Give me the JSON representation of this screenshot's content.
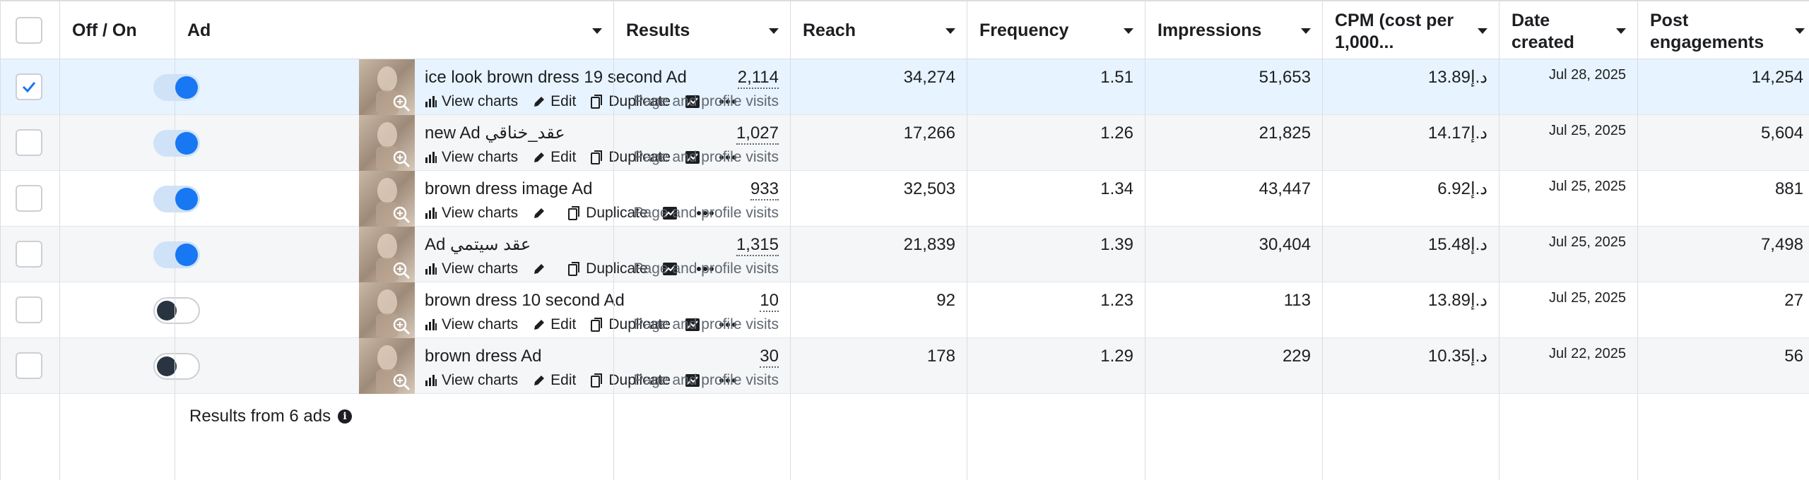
{
  "header": {
    "offon": "Off / On",
    "ad": "Ad",
    "results": "Results",
    "reach": "Reach",
    "frequency": "Frequency",
    "impressions": "Impressions",
    "cpm": "CPM (cost per 1,000...",
    "date_created": "Date created",
    "post_engagements": "Post engagements"
  },
  "actions": {
    "view_charts": "View charts",
    "edit": "Edit",
    "duplicate": "Duplicate"
  },
  "rows": [
    {
      "name": "ice look brown dress 19 second Ad",
      "results": "2,114",
      "results_type": "Page and profile visits",
      "reach": "34,274",
      "frequency": "1.51",
      "impressions": "51,653",
      "cpm": "13.89د.إ",
      "date": "Jul 28, 2025",
      "engagements": "14,254",
      "status": "on",
      "selected": true
    },
    {
      "name": "new Ad عقد_خناقي",
      "results": "1,027",
      "results_type": "Page and profile visits",
      "reach": "17,266",
      "frequency": "1.26",
      "impressions": "21,825",
      "cpm": "14.17د.إ",
      "date": "Jul 25, 2025",
      "engagements": "5,604",
      "status": "on",
      "selected": false
    },
    {
      "name": "brown dress image Ad",
      "results": "933",
      "results_type": "Page and profile visits",
      "reach": "32,503",
      "frequency": "1.34",
      "impressions": "43,447",
      "cpm": "6.92د.إ",
      "date": "Jul 25, 2025",
      "engagements": "881",
      "status": "on",
      "selected": false
    },
    {
      "name": "Ad عقد سيتمي",
      "results": "1,315",
      "results_type": "Page and profile visits",
      "reach": "21,839",
      "frequency": "1.39",
      "impressions": "30,404",
      "cpm": "15.48د.إ",
      "date": "Jul 25, 2025",
      "engagements": "7,498",
      "status": "on",
      "selected": false
    },
    {
      "name": "brown dress 10 second Ad",
      "results": "10",
      "results_type": "Page and profile visits",
      "reach": "92",
      "frequency": "1.23",
      "impressions": "113",
      "cpm": "13.89د.إ",
      "date": "Jul 25, 2025",
      "engagements": "27",
      "status": "off",
      "selected": false
    },
    {
      "name": "brown dress Ad",
      "results": "30",
      "results_type": "Page and profile visits",
      "reach": "178",
      "frequency": "1.29",
      "impressions": "229",
      "cpm": "10.35د.إ",
      "date": "Jul 22, 2025",
      "engagements": "56",
      "status": "off",
      "selected": false
    }
  ],
  "footer": {
    "summary": "Results from 6 ads",
    "info_glyph": "i"
  },
  "icons": [
    "checkmark-icon",
    "zoom-in-icon",
    "bar-chart-icon",
    "pencil-icon",
    "duplicate-icon",
    "trend-chart-icon",
    "more-icon",
    "info-icon",
    "sort-caret-icon"
  ]
}
